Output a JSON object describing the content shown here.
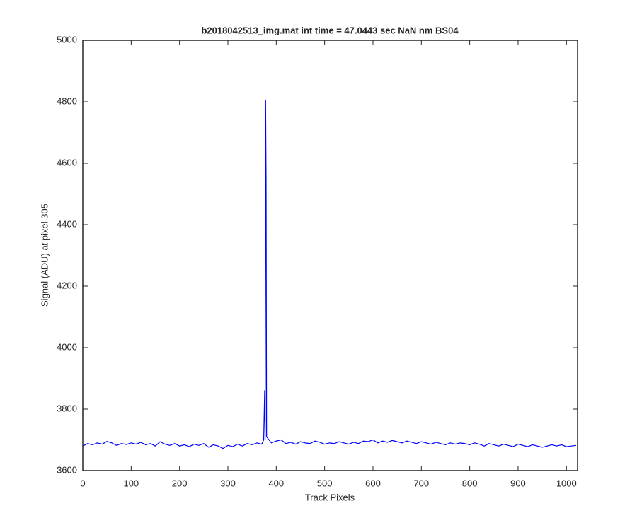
{
  "chart_data": {
    "type": "line",
    "title": "b2018042513_img.mat int time = 47.0443 sec  NaN nm BS04",
    "x_label": "Track Pixels",
    "y_label": "Signal (ADU) at pixel 305",
    "x": [
      0,
      10,
      20,
      30,
      40,
      50,
      60,
      70,
      80,
      90,
      100,
      110,
      120,
      130,
      140,
      150,
      160,
      170,
      180,
      190,
      200,
      210,
      220,
      230,
      240,
      250,
      260,
      270,
      280,
      290,
      300,
      310,
      320,
      330,
      340,
      350,
      360,
      370,
      374,
      376,
      377,
      378,
      379,
      380,
      390,
      400,
      410,
      420,
      430,
      440,
      450,
      460,
      470,
      480,
      490,
      500,
      510,
      520,
      530,
      540,
      550,
      560,
      570,
      580,
      590,
      600,
      610,
      620,
      630,
      640,
      650,
      660,
      670,
      680,
      690,
      700,
      710,
      720,
      730,
      740,
      750,
      760,
      770,
      780,
      790,
      800,
      810,
      820,
      830,
      840,
      850,
      860,
      870,
      880,
      890,
      900,
      910,
      920,
      930,
      940,
      950,
      960,
      970,
      980,
      990,
      1000,
      1010,
      1020
    ],
    "series": [
      {
        "name": "signal",
        "color": "#0000ff",
        "values": [
          3680,
          3688,
          3684,
          3690,
          3686,
          3695,
          3690,
          3682,
          3688,
          3685,
          3690,
          3686,
          3692,
          3684,
          3688,
          3680,
          3694,
          3686,
          3682,
          3688,
          3680,
          3684,
          3678,
          3686,
          3682,
          3688,
          3676,
          3684,
          3680,
          3672,
          3682,
          3678,
          3686,
          3680,
          3688,
          3684,
          3690,
          3686,
          3700,
          3860,
          3700,
          4805,
          4545,
          3710,
          3690,
          3696,
          3700,
          3688,
          3692,
          3686,
          3694,
          3690,
          3688,
          3696,
          3692,
          3686,
          3690,
          3688,
          3694,
          3690,
          3686,
          3692,
          3688,
          3696,
          3694,
          3700,
          3690,
          3696,
          3692,
          3698,
          3694,
          3690,
          3696,
          3692,
          3688,
          3694,
          3690,
          3686,
          3692,
          3688,
          3684,
          3690,
          3686,
          3690,
          3688,
          3684,
          3690,
          3686,
          3680,
          3688,
          3684,
          3680,
          3686,
          3682,
          3678,
          3686,
          3682,
          3678,
          3684,
          3680,
          3676,
          3680,
          3684,
          3680,
          3684,
          3678,
          3680,
          3682
        ]
      }
    ],
    "xlim": [
      0,
      1023
    ],
    "ylim": [
      3600,
      5000
    ],
    "xticks": [
      0,
      100,
      200,
      300,
      400,
      500,
      600,
      700,
      800,
      900,
      1000
    ],
    "yticks": [
      3600,
      3800,
      4000,
      4200,
      4400,
      4600,
      4800,
      5000
    ],
    "grid": false
  }
}
